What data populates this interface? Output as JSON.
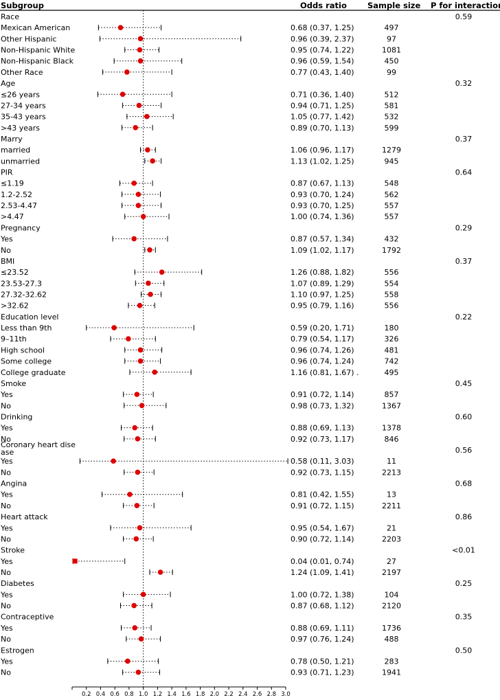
{
  "header": {
    "subgroup": "Subgroup",
    "odds_ratio": "Odds ratio",
    "sample_size": "Sample size",
    "p_interaction": "P for interaction"
  },
  "chart_data": {
    "type": "forest",
    "title": "",
    "xlabel": "",
    "xlim": [
      0,
      3.0
    ],
    "reference_line": 1.0,
    "x_ticks": [
      "0.2",
      "0.4",
      "0.6",
      "0.8",
      "1.0",
      "1.2",
      "1.4",
      "1.6",
      "1.8",
      "2.0",
      "2.2",
      "2.4",
      "2.6",
      "2.8",
      "3.0"
    ],
    "marker_color": "#e00000",
    "rows": [
      {
        "kind": "group",
        "label": "Race",
        "p": "0.59"
      },
      {
        "kind": "item",
        "label": "Mexican American",
        "or": 0.68,
        "lo": 0.37,
        "hi": 1.25,
        "text": "0.68 (0.37, 1.25)",
        "n": "497"
      },
      {
        "kind": "item",
        "label": "Other Hispanic",
        "or": 0.96,
        "lo": 0.39,
        "hi": 2.37,
        "text": "0.96 (0.39, 2.37)",
        "n": "97"
      },
      {
        "kind": "item",
        "label": "Non-Hispanic White",
        "or": 0.95,
        "lo": 0.74,
        "hi": 1.22,
        "text": "0.95 (0.74, 1.22)",
        "n": "1081"
      },
      {
        "kind": "item",
        "label": "Non-Hispanic Black",
        "or": 0.96,
        "lo": 0.59,
        "hi": 1.54,
        "text": "0.96 (0.59, 1.54)",
        "n": "450"
      },
      {
        "kind": "item",
        "label": "Other Race",
        "or": 0.77,
        "lo": 0.43,
        "hi": 1.4,
        "text": "0.77 (0.43, 1.40)",
        "n": "99"
      },
      {
        "kind": "group",
        "label": "Age",
        "p": "0.32"
      },
      {
        "kind": "item",
        "label": "≤26 years",
        "or": 0.71,
        "lo": 0.36,
        "hi": 1.4,
        "text": "0.71 (0.36, 1.40)",
        "n": "512"
      },
      {
        "kind": "item",
        "label": "27-34 years",
        "or": 0.94,
        "lo": 0.71,
        "hi": 1.25,
        "text": "0.94 (0.71, 1.25)",
        "n": "581"
      },
      {
        "kind": "item",
        "label": "35-43 years",
        "or": 1.05,
        "lo": 0.77,
        "hi": 1.42,
        "text": "1.05 (0.77, 1.42)",
        "n": "532"
      },
      {
        "kind": "item",
        "label": ">43 years",
        "or": 0.89,
        "lo": 0.7,
        "hi": 1.13,
        "text": "0.89 (0.70, 1.13)",
        "n": "599"
      },
      {
        "kind": "group",
        "label": "Marry",
        "p": "0.37"
      },
      {
        "kind": "item",
        "label": "married",
        "or": 1.06,
        "lo": 0.96,
        "hi": 1.17,
        "text": "1.06 (0.96, 1.17)",
        "n": "1279"
      },
      {
        "kind": "item",
        "label": "unmarried",
        "or": 1.13,
        "lo": 1.02,
        "hi": 1.25,
        "text": "1.13 (1.02, 1.25)",
        "n": "945"
      },
      {
        "kind": "group",
        "label": "PIR",
        "p": "0.64"
      },
      {
        "kind": "item",
        "label": "≤1.19",
        "or": 0.87,
        "lo": 0.67,
        "hi": 1.13,
        "text": "0.87 (0.67, 1.13)",
        "n": "548"
      },
      {
        "kind": "item",
        "label": "1.2-2.52",
        "or": 0.93,
        "lo": 0.7,
        "hi": 1.24,
        "text": "0.93 (0.70, 1.24)",
        "n": "562"
      },
      {
        "kind": "item",
        "label": "2.53-4.47",
        "or": 0.93,
        "lo": 0.7,
        "hi": 1.25,
        "text": "0.93 (0.70, 1.25)",
        "n": "557"
      },
      {
        "kind": "item",
        "label": ">4.47",
        "or": 1.0,
        "lo": 0.74,
        "hi": 1.36,
        "text": "1.00 (0.74, 1.36)",
        "n": "557"
      },
      {
        "kind": "group",
        "label": "Pregnancy",
        "p": "0.29"
      },
      {
        "kind": "item",
        "label": "Yes",
        "or": 0.87,
        "lo": 0.57,
        "hi": 1.34,
        "text": "0.87 (0.57, 1.34)",
        "n": "432"
      },
      {
        "kind": "item",
        "label": "No",
        "or": 1.09,
        "lo": 1.02,
        "hi": 1.17,
        "text": "1.09 (1.02, 1.17)",
        "n": "1792"
      },
      {
        "kind": "group",
        "label": "BMI",
        "p": "0.37"
      },
      {
        "kind": "item",
        "label": "≤23.52",
        "or": 1.26,
        "lo": 0.88,
        "hi": 1.82,
        "text": "1.26 (0.88, 1.82)",
        "n": "556"
      },
      {
        "kind": "item",
        "label": "23.53-27.3",
        "or": 1.07,
        "lo": 0.89,
        "hi": 1.29,
        "text": "1.07 (0.89, 1.29)",
        "n": "554"
      },
      {
        "kind": "item",
        "label": "27.32-32.62",
        "or": 1.1,
        "lo": 0.97,
        "hi": 1.25,
        "text": "1.10 (0.97, 1.25)",
        "n": "558"
      },
      {
        "kind": "item",
        "label": ">32.62",
        "or": 0.95,
        "lo": 0.79,
        "hi": 1.16,
        "text": "0.95 (0.79, 1.16)",
        "n": "556"
      },
      {
        "kind": "group",
        "label": "Education level",
        "p": "0.22"
      },
      {
        "kind": "item",
        "label": "Less than 9th",
        "or": 0.59,
        "lo": 0.2,
        "hi": 1.71,
        "text": "0.59 (0.20, 1.71)",
        "n": "180"
      },
      {
        "kind": "item",
        "label": "9–11th",
        "or": 0.79,
        "lo": 0.54,
        "hi": 1.17,
        "text": "0.79 (0.54, 1.17)",
        "n": "326"
      },
      {
        "kind": "item",
        "label": "High school",
        "or": 0.96,
        "lo": 0.74,
        "hi": 1.26,
        "text": "0.96 (0.74, 1.26)",
        "n": "481"
      },
      {
        "kind": "item",
        "label": "Some college",
        "or": 0.96,
        "lo": 0.74,
        "hi": 1.24,
        "text": "0.96 (0.74, 1.24)",
        "n": "742"
      },
      {
        "kind": "item",
        "label": "College graduate",
        "or": 1.16,
        "lo": 0.81,
        "hi": 1.67,
        "text": "1.16 (0.81, 1.67) .",
        "n": "495"
      },
      {
        "kind": "group",
        "label": "Smoke",
        "p": "0.45"
      },
      {
        "kind": "item",
        "label": "Yes",
        "or": 0.91,
        "lo": 0.72,
        "hi": 1.14,
        "text": "0.91 (0.72, 1.14)",
        "n": "857"
      },
      {
        "kind": "item",
        "label": "No",
        "or": 0.98,
        "lo": 0.73,
        "hi": 1.32,
        "text": "0.98 (0.73, 1.32)",
        "n": "1367"
      },
      {
        "kind": "group",
        "label": "Drinking",
        "p": "0.60"
      },
      {
        "kind": "item",
        "label": "Yes",
        "or": 0.88,
        "lo": 0.69,
        "hi": 1.13,
        "text": "0.88 (0.69, 1.13)",
        "n": "1378"
      },
      {
        "kind": "item",
        "label": "No",
        "or": 0.92,
        "lo": 0.73,
        "hi": 1.17,
        "text": "0.92 (0.73, 1.17)",
        "n": "846"
      },
      {
        "kind": "group",
        "label": "Coronary heart dise",
        "label2": "ase",
        "p": "0.56"
      },
      {
        "kind": "item",
        "label": "Yes",
        "or": 0.58,
        "lo": 0.11,
        "hi": 3.03,
        "text": "0.58 (0.11, 3.03)",
        "n": "11"
      },
      {
        "kind": "item",
        "label": "No",
        "or": 0.92,
        "lo": 0.73,
        "hi": 1.15,
        "text": "0.92 (0.73, 1.15)",
        "n": "2213"
      },
      {
        "kind": "group",
        "label": "Angina",
        "p": "0.68"
      },
      {
        "kind": "item",
        "label": "Yes",
        "or": 0.81,
        "lo": 0.42,
        "hi": 1.55,
        "text": "0.81 (0.42, 1.55)",
        "n": "13"
      },
      {
        "kind": "item",
        "label": "No",
        "or": 0.91,
        "lo": 0.72,
        "hi": 1.15,
        "text": "0.91 (0.72, 1.15)",
        "n": "2211"
      },
      {
        "kind": "group",
        "label": "Heart attack",
        "p": "0.86"
      },
      {
        "kind": "item",
        "label": "Yes",
        "or": 0.95,
        "lo": 0.54,
        "hi": 1.67,
        "text": "0.95 (0.54, 1.67)",
        "n": "21"
      },
      {
        "kind": "item",
        "label": "No",
        "or": 0.9,
        "lo": 0.72,
        "hi": 1.14,
        "text": "0.90 (0.72, 1.14)",
        "n": "2203"
      },
      {
        "kind": "group",
        "label": "Stroke",
        "p": "<0.01"
      },
      {
        "kind": "item",
        "label": "Yes",
        "or": 0.04,
        "lo": 0.01,
        "hi": 0.74,
        "text": "0.04 (0.01, 0.74)",
        "n": "27"
      },
      {
        "kind": "item",
        "label": "No",
        "or": 1.24,
        "lo": 1.09,
        "hi": 1.41,
        "text": "1.24 (1.09, 1.41)",
        "n": "2197"
      },
      {
        "kind": "group",
        "label": "Diabetes",
        "p": "0.25"
      },
      {
        "kind": "item",
        "label": "Yes",
        "or": 1.0,
        "lo": 0.72,
        "hi": 1.38,
        "text": "1.00 (0.72, 1.38)",
        "n": "104"
      },
      {
        "kind": "item",
        "label": "No",
        "or": 0.87,
        "lo": 0.68,
        "hi": 1.12,
        "text": "0.87 (0.68, 1.12)",
        "n": "2120"
      },
      {
        "kind": "group",
        "label": "Contraceptive",
        "p": "0.35"
      },
      {
        "kind": "item",
        "label": "Yes",
        "or": 0.88,
        "lo": 0.69,
        "hi": 1.11,
        "text": "0.88 (0.69, 1.11)",
        "n": "1736"
      },
      {
        "kind": "item",
        "label": "No",
        "or": 0.97,
        "lo": 0.76,
        "hi": 1.24,
        "text": "0.97 (0.76, 1.24)",
        "n": "488"
      },
      {
        "kind": "group",
        "label": "Estrogen",
        "p": "0.50"
      },
      {
        "kind": "item",
        "label": "Yes",
        "or": 0.78,
        "lo": 0.5,
        "hi": 1.21,
        "text": "0.78 (0.50, 1.21)",
        "n": "283"
      },
      {
        "kind": "item",
        "label": "No",
        "or": 0.93,
        "lo": 0.71,
        "hi": 1.23,
        "text": "0.93 (0.71, 1.23)",
        "n": "1941"
      }
    ]
  }
}
